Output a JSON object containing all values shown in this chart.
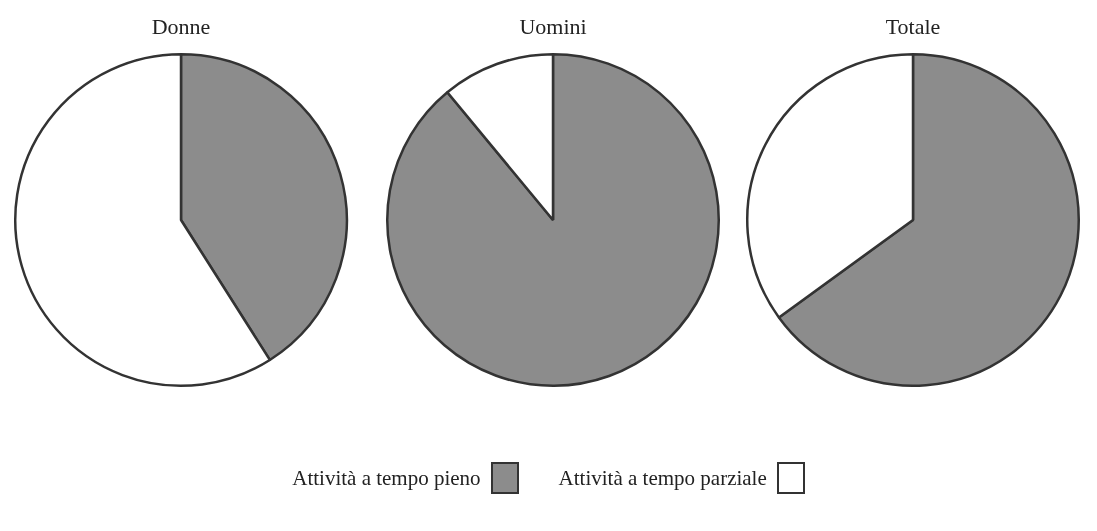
{
  "chart_data": [
    {
      "type": "pie",
      "title": "Donne",
      "categories": [
        "Attività a tempo pieno",
        "Attività a tempo parziale"
      ],
      "values": [
        41,
        59
      ],
      "colors": [
        "#8c8c8c",
        "#ffffff"
      ],
      "legend": "bottom"
    },
    {
      "type": "pie",
      "title": "Uomini",
      "categories": [
        null,
        null
      ],
      "values": [
        89,
        11
      ],
      "colors": [
        "#8c8c8c",
        "#ffffff"
      ]
    },
    {
      "type": "pie",
      "title": "Totale",
      "categories": [
        null,
        null
      ],
      "values": [
        65,
        35
      ],
      "colors": [
        "#8c8c8c",
        "#ffffff"
      ]
    }
  ]
}
